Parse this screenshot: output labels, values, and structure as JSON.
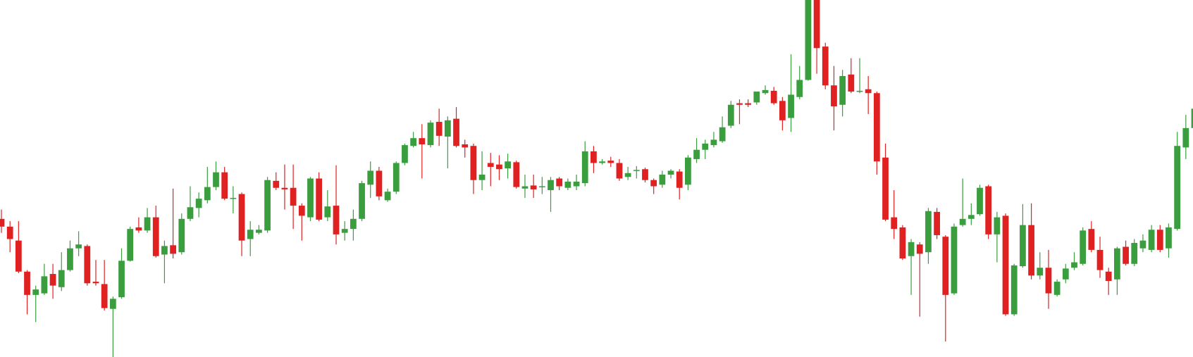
{
  "chart_data": {
    "type": "candlestick",
    "up_color": "#3a9e3f",
    "down_color": "#e02121",
    "ylim": [
      0,
      460
    ],
    "open": [
      178,
      168,
      150,
      110,
      80,
      82,
      107,
      90,
      112,
      140,
      143,
      97,
      94,
      62,
      77,
      124,
      167,
      163,
      180,
      132,
      144,
      135,
      178,
      192,
      202,
      219,
      238,
      204,
      210,
      152,
      160,
      163,
      227,
      218,
      218,
      195,
      180,
      230,
      180,
      195,
      160,
      165,
      178,
      222,
      240,
      202,
      213,
      250,
      272,
      282,
      273,
      303,
      284,
      307,
      274,
      272,
      228,
      250,
      248,
      243,
      251,
      217,
      221,
      219,
      215,
      230,
      218,
      220,
      224,
      265,
      250,
      253,
      250,
      232,
      240,
      242,
      228,
      222,
      235,
      239,
      222,
      255,
      267,
      273,
      278,
      298,
      327,
      327,
      328,
      340,
      343,
      330,
      308,
      335,
      357,
      460,
      400,
      350,
      325,
      364,
      342,
      345,
      340,
      257,
      180,
      167,
      130,
      145,
      135,
      187,
      155,
      82,
      170,
      178,
      184,
      220,
      158,
      182,
      55,
      117,
      170,
      105,
      115,
      80,
      100,
      115,
      120,
      165,
      138,
      110,
      100,
      142,
      120,
      140,
      138,
      164,
      140,
      165,
      270,
      295
    ],
    "high": [
      190,
      175,
      175,
      112,
      92,
      120,
      120,
      135,
      150,
      162,
      145,
      125,
      125,
      78,
      140,
      168,
      180,
      192,
      195,
      150,
      217,
      185,
      220,
      212,
      245,
      252,
      245,
      220,
      212,
      175,
      170,
      232,
      238,
      248,
      248,
      198,
      232,
      238,
      215,
      247,
      175,
      190,
      227,
      252,
      245,
      217,
      252,
      275,
      290,
      300,
      305,
      320,
      310,
      322,
      280,
      275,
      265,
      263,
      260,
      262,
      253,
      235,
      235,
      232,
      232,
      232,
      230,
      235,
      278,
      272,
      255,
      258,
      255,
      245,
      246,
      244,
      230,
      240,
      242,
      242,
      260,
      282,
      280,
      290,
      310,
      330,
      332,
      332,
      342,
      350,
      348,
      335,
      390,
      375,
      460,
      460,
      405,
      375,
      370,
      385,
      385,
      362,
      342,
      275,
      215,
      170,
      152,
      148,
      192,
      192,
      157,
      172,
      230,
      198,
      222,
      222,
      187,
      185,
      120,
      197,
      198,
      135,
      138,
      100,
      120,
      135,
      167,
      175,
      155,
      115,
      142,
      150,
      152,
      158,
      170,
      170,
      172,
      290,
      312,
      325
    ],
    "low": [
      160,
      135,
      108,
      55,
      45,
      80,
      75,
      85,
      110,
      130,
      92,
      92,
      60,
      0,
      75,
      123,
      160,
      160,
      128,
      95,
      127,
      132,
      175,
      180,
      198,
      215,
      202,
      185,
      130,
      130,
      158,
      160,
      215,
      190,
      165,
      150,
      175,
      175,
      175,
      145,
      150,
      150,
      175,
      205,
      202,
      200,
      210,
      247,
      270,
      230,
      270,
      272,
      243,
      270,
      257,
      210,
      215,
      220,
      228,
      230,
      217,
      205,
      205,
      210,
      187,
      215,
      215,
      215,
      220,
      237,
      248,
      245,
      227,
      228,
      230,
      225,
      210,
      218,
      230,
      203,
      215,
      250,
      255,
      270,
      276,
      295,
      300,
      322,
      325,
      338,
      325,
      292,
      290,
      332,
      356,
      365,
      345,
      292,
      310,
      340,
      340,
      313,
      235,
      175,
      152,
      125,
      80,
      52,
      120,
      152,
      20,
      80,
      168,
      170,
      182,
      152,
      122,
      53,
      53,
      115,
      100,
      100,
      62,
      78,
      95,
      112,
      118,
      135,
      102,
      80,
      80,
      118,
      117,
      135,
      135,
      135,
      128,
      163,
      255,
      290
    ],
    "close": [
      168,
      152,
      110,
      80,
      87,
      104,
      92,
      112,
      140,
      145,
      95,
      95,
      63,
      75,
      124,
      165,
      163,
      180,
      130,
      143,
      133,
      178,
      193,
      204,
      219,
      238,
      204,
      205,
      150,
      164,
      164,
      228,
      218,
      216,
      195,
      182,
      230,
      177,
      194,
      158,
      165,
      178,
      224,
      240,
      207,
      213,
      250,
      273,
      282,
      274,
      302,
      285,
      305,
      272,
      270,
      228,
      235,
      245,
      242,
      252,
      219,
      220,
      216,
      220,
      228,
      220,
      226,
      226,
      265,
      250,
      252,
      250,
      230,
      237,
      241,
      228,
      220,
      235,
      240,
      218,
      257,
      267,
      275,
      280,
      296,
      325,
      325,
      325,
      342,
      344,
      327,
      305,
      338,
      357,
      460,
      398,
      350,
      323,
      362,
      342,
      343,
      340,
      252,
      177,
      165,
      127,
      148,
      133,
      188,
      157,
      80,
      168,
      178,
      183,
      218,
      158,
      180,
      55,
      118,
      170,
      105,
      115,
      82,
      97,
      114,
      122,
      163,
      138,
      112,
      98,
      140,
      120,
      147,
      150,
      164,
      138,
      167,
      272,
      295,
      320
    ]
  }
}
